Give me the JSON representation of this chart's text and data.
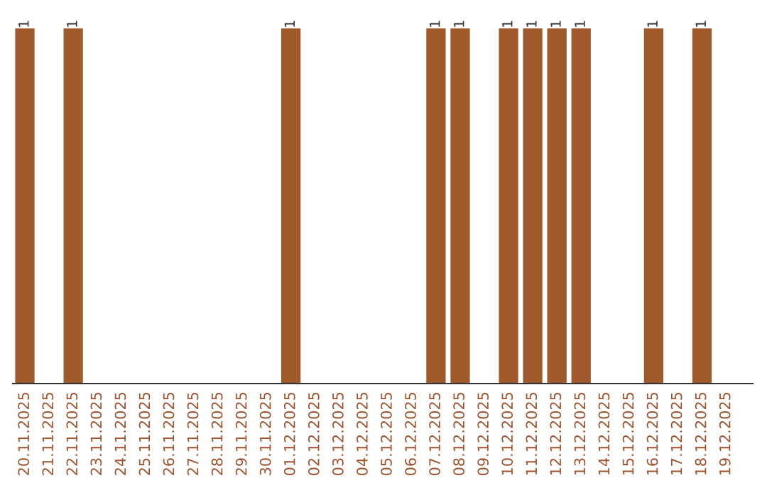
{
  "chart_data": {
    "type": "bar",
    "categories": [
      "20.11.2025",
      "21.11.2025",
      "22.11.2025",
      "23.11.2025",
      "24.11.2025",
      "25.11.2025",
      "26.11.2025",
      "27.11.2025",
      "28.11.2025",
      "29.11.2025",
      "30.11.2025",
      "01.12.2025",
      "02.12.2025",
      "03.12.2025",
      "04.12.2025",
      "05.12.2025",
      "06.12.2025",
      "07.12.2025",
      "08.12.2025",
      "09.12.2025",
      "10.12.2025",
      "11.12.2025",
      "12.12.2025",
      "13.12.2025",
      "14.12.2025",
      "15.12.2025",
      "16.12.2025",
      "17.12.2025",
      "18.12.2025",
      "19.12.2025"
    ],
    "values": [
      1,
      0,
      1,
      0,
      0,
      0,
      0,
      0,
      0,
      0,
      0,
      1,
      0,
      0,
      0,
      0,
      0,
      1,
      1,
      0,
      1,
      1,
      1,
      1,
      0,
      0,
      1,
      0,
      1,
      0
    ],
    "value_labels": [
      "1",
      null,
      "1",
      null,
      null,
      null,
      null,
      null,
      null,
      null,
      null,
      "1",
      null,
      null,
      null,
      null,
      null,
      "1",
      "1",
      null,
      "1",
      "1",
      "1",
      "1",
      null,
      null,
      "1",
      null,
      "1",
      null
    ],
    "color": "#a0592a",
    "grid": false,
    "legend": false
  }
}
